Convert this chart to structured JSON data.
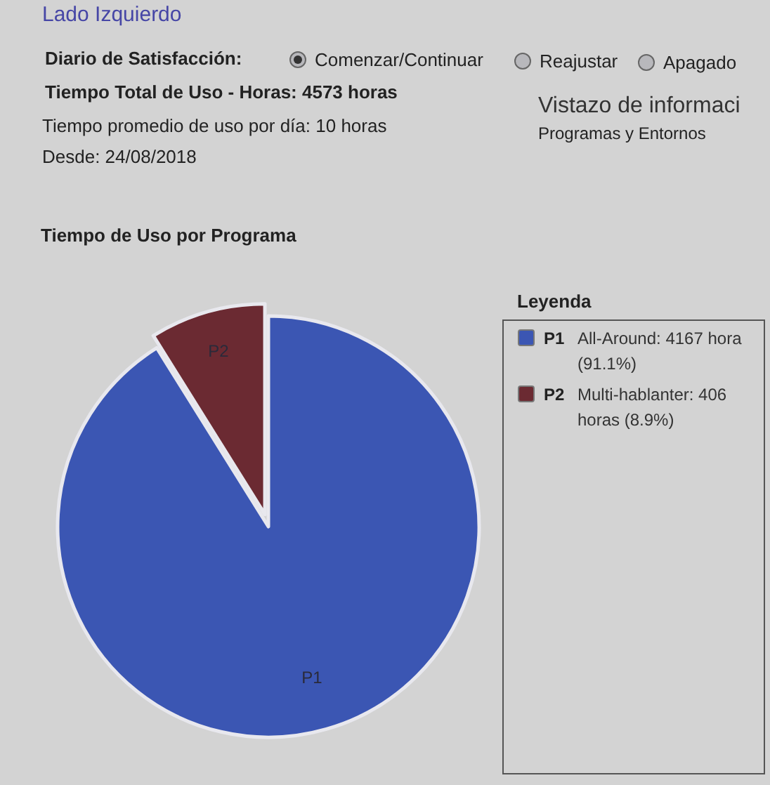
{
  "chart_data": {
    "type": "pie",
    "title": "Tiempo de Uso por Programa",
    "legend_title": "Leyenda",
    "legend": "right",
    "categories": [
      "P1",
      "P2"
    ],
    "values": [
      4167,
      406
    ],
    "colors": [
      "#3b56b3",
      "#6b2a32"
    ],
    "value_labels": [
      "All-Around: 4167 hora (91.1%)",
      "Multi-hablanter: 406 horas (8.9%)"
    ],
    "annotations": [
      "Lado Izquierdo",
      "Diario de Satisfacción:",
      "Comenzar/Continuar",
      "Reajustar",
      "Apagado",
      "Tiempo Total de Uso - Horas: 4573 horas",
      "Tiempo promedio de uso por día: 10 horas",
      "Desde: 24/08/2018",
      "Vistazo de informaci",
      "Programas y Entornos"
    ]
  }
}
